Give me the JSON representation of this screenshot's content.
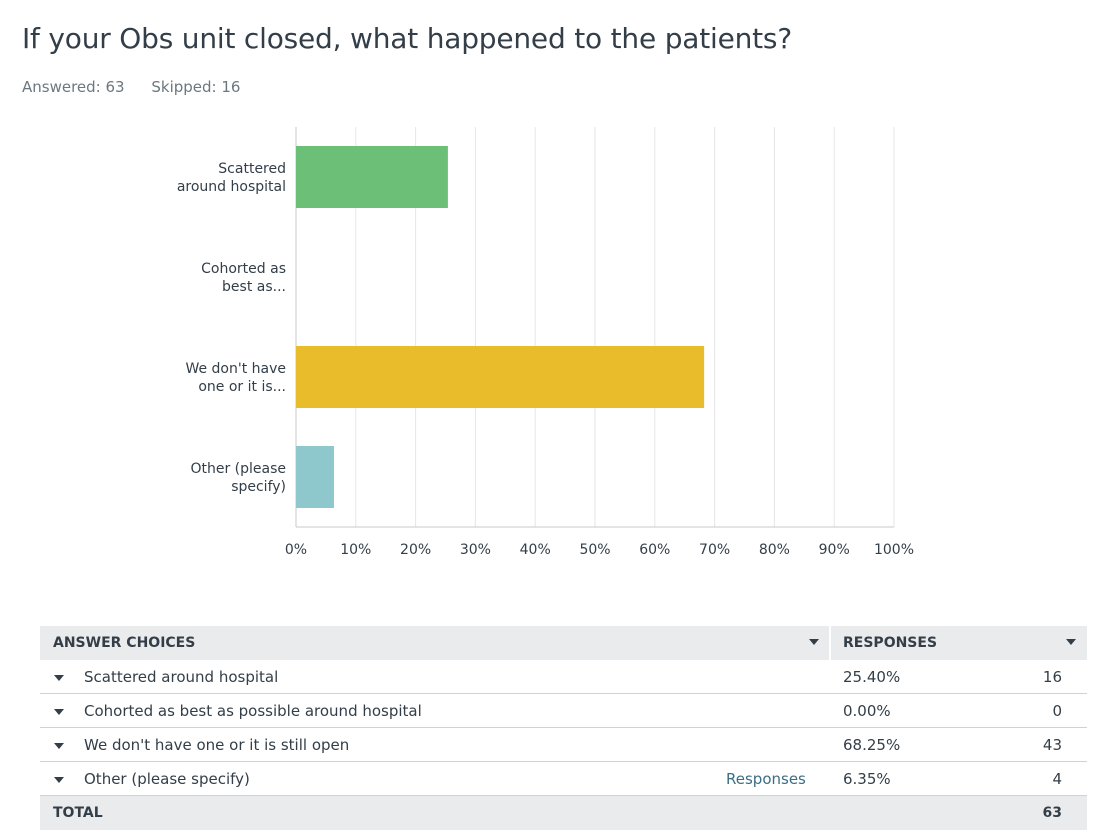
{
  "question": {
    "title": "If your Obs unit closed, what happened to the patients?",
    "answered": "Answered: 63",
    "skipped": "Skipped: 16"
  },
  "chart_data": {
    "type": "bar",
    "orientation": "horizontal",
    "categories": [
      [
        "Scattered",
        "around hospital"
      ],
      [
        "Cohorted as",
        "best as..."
      ],
      [
        "We don't have",
        "one or it is..."
      ],
      [
        "Other (please",
        "specify)"
      ]
    ],
    "values": [
      25.4,
      0.0,
      68.25,
      6.35
    ],
    "colors": [
      "#6bbf76",
      "#8fc8cc",
      "#e9bc2b",
      "#8fc8cc"
    ],
    "xticks": [
      "0%",
      "10%",
      "20%",
      "30%",
      "40%",
      "50%",
      "60%",
      "70%",
      "80%",
      "90%",
      "100%"
    ],
    "xlim": [
      0,
      100
    ],
    "grid": true
  },
  "table": {
    "headers": {
      "choices": "ANSWER CHOICES",
      "responses": "RESPONSES"
    },
    "rows": [
      {
        "choice": "Scattered around hospital",
        "percent": "25.40%",
        "count": "16",
        "link": ""
      },
      {
        "choice": "Cohorted as best as possible around hospital",
        "percent": "0.00%",
        "count": "0",
        "link": ""
      },
      {
        "choice": "We don't have one or it is still open",
        "percent": "68.25%",
        "count": "43",
        "link": ""
      },
      {
        "choice": "Other (please specify)",
        "percent": "6.35%",
        "count": "4",
        "link": "Responses"
      }
    ],
    "total": {
      "label": "TOTAL",
      "count": "63"
    }
  }
}
